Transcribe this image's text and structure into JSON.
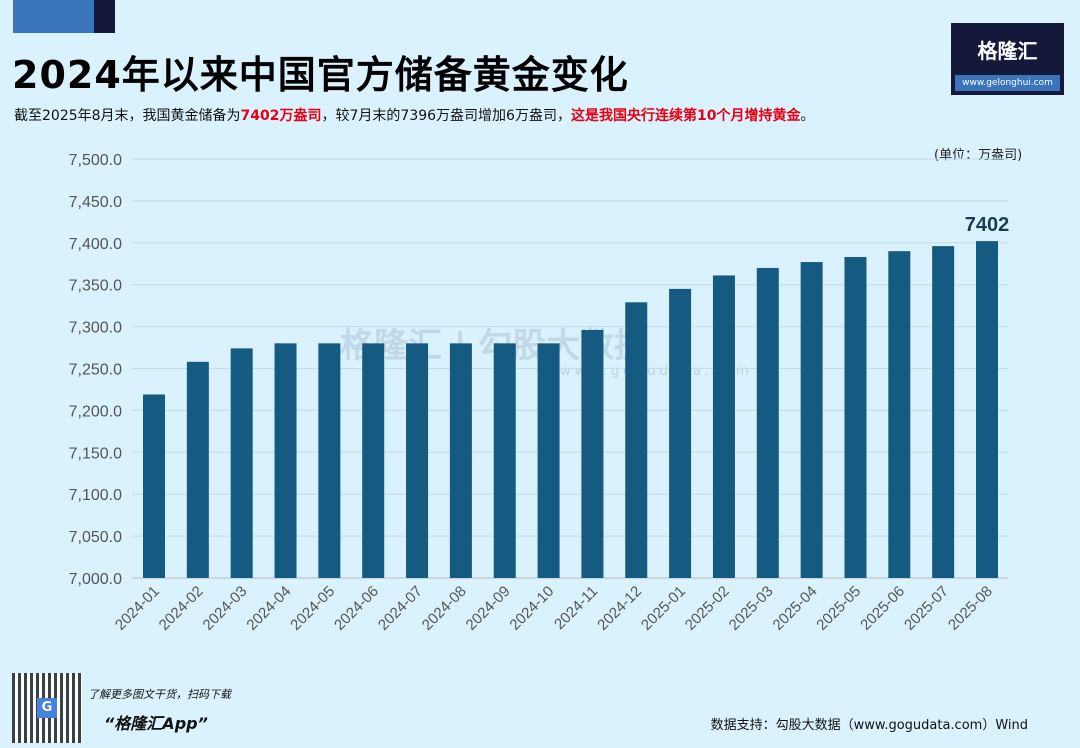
{
  "header": {
    "title": "2024年以来中国官方储备黄金变化",
    "subtitle_parts": [
      "截至2025年8月末，我国黄金储备为",
      "7402万盎司",
      "，较7月末的7396万盎司增加6万盎司，",
      "这是我国央行连续第10个月增持黄金",
      "。"
    ],
    "logo_name": "格隆汇",
    "logo_url": "www.gelonghui.com"
  },
  "watermark": {
    "text": "格隆汇 | 勾股大数据",
    "url": "www.gogudata.com"
  },
  "chart_data": {
    "type": "bar",
    "title": "2024年以来中国官方储备黄金变化",
    "unit_label": "(单位：万盎司)",
    "categories": [
      "2024-01",
      "2024-02",
      "2024-03",
      "2024-04",
      "2024-05",
      "2024-06",
      "2024-07",
      "2024-08",
      "2024-09",
      "2024-10",
      "2024-11",
      "2024-12",
      "2025-01",
      "2025-02",
      "2025-03",
      "2025-04",
      "2025-05",
      "2025-06",
      "2025-07",
      "2025-08"
    ],
    "values": [
      7219,
      7258,
      7274,
      7280,
      7280,
      7280,
      7280,
      7280,
      7280,
      7280,
      7296,
      7329,
      7345,
      7361,
      7370,
      7377,
      7383,
      7390,
      7396,
      7402
    ],
    "ylim": [
      7000,
      7500
    ],
    "yticks": [
      "7,000.0",
      "7,050.0",
      "7,100.0",
      "7,150.0",
      "7,200.0",
      "7,250.0",
      "7,300.0",
      "7,350.0",
      "7,400.0",
      "7,450.0",
      "7,500.0"
    ],
    "data_labels": {
      "2025-08": "7402"
    },
    "grid": true,
    "bar_color": "#155a80"
  },
  "footer": {
    "promo": "了解更多图文干货，扫码下载",
    "app": "“格隆汇App”",
    "source": "数据支持：勾股大数据（www.gogudata.com）Wind"
  }
}
